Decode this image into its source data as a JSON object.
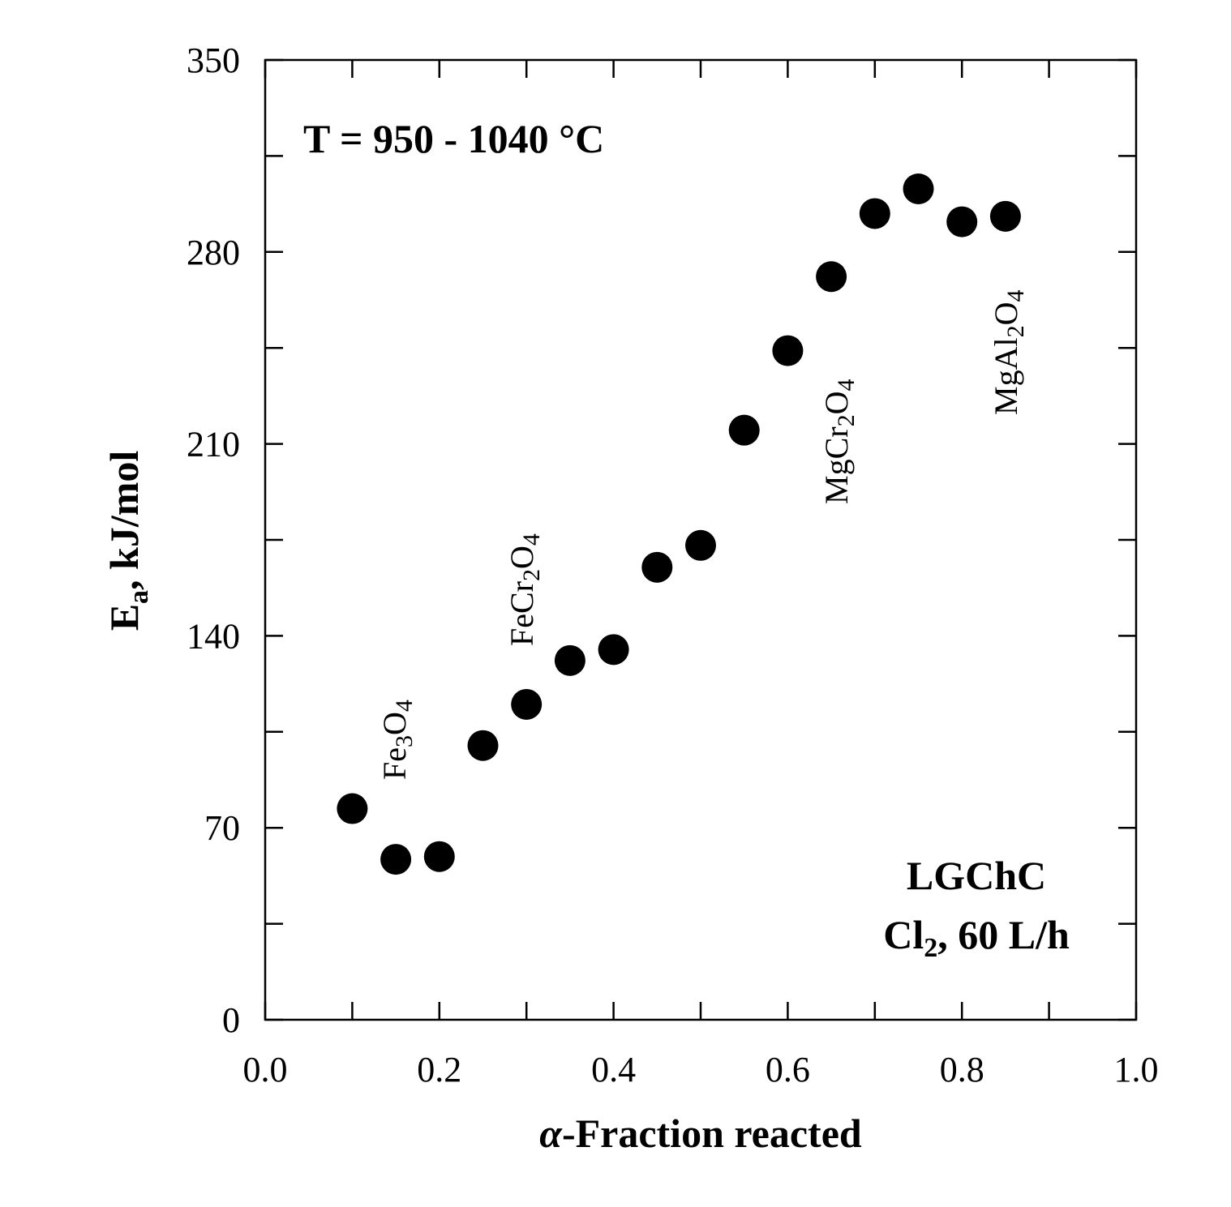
{
  "chart_data": {
    "type": "scatter",
    "title": "",
    "xlabel_italic": "α",
    "xlabel_rest": "-Fraction reacted",
    "ylabel_main": "E",
    "ylabel_sub": "a",
    "ylabel_rest": ", kJ/mol",
    "xlim": [
      0.0,
      1.0
    ],
    "ylim": [
      0,
      350
    ],
    "x_tick_labels": [
      "0.0",
      "0.2",
      "0.4",
      "0.6",
      "0.8",
      "1.0"
    ],
    "y_tick_labels": [
      "0",
      "70",
      "140",
      "210",
      "280",
      "350"
    ],
    "series": [
      {
        "name": "Ea",
        "x": [
          0.1,
          0.15,
          0.2,
          0.25,
          0.3,
          0.35,
          0.4,
          0.45,
          0.5,
          0.55,
          0.6,
          0.65,
          0.7,
          0.75,
          0.8,
          0.85
        ],
        "y": [
          77,
          58.5,
          59.5,
          100,
          115,
          131,
          135,
          165,
          173,
          215,
          244,
          271,
          294,
          303,
          291,
          293
        ]
      }
    ],
    "annotations": {
      "temperature": "T = 950 - 1040 °C",
      "material": "LGChC",
      "gas_main": "Cl",
      "gas_sub": "2",
      "gas_rest": ", 60 L/h"
    },
    "phase_labels": [
      {
        "parts": [
          "Fe",
          "3",
          "O",
          "4"
        ]
      },
      {
        "parts": [
          "FeCr",
          "2",
          "O",
          "4"
        ]
      },
      {
        "parts": [
          "MgCr",
          "2",
          "O",
          "4"
        ]
      },
      {
        "parts": [
          "MgAl",
          "2",
          "O",
          "4"
        ]
      }
    ]
  }
}
